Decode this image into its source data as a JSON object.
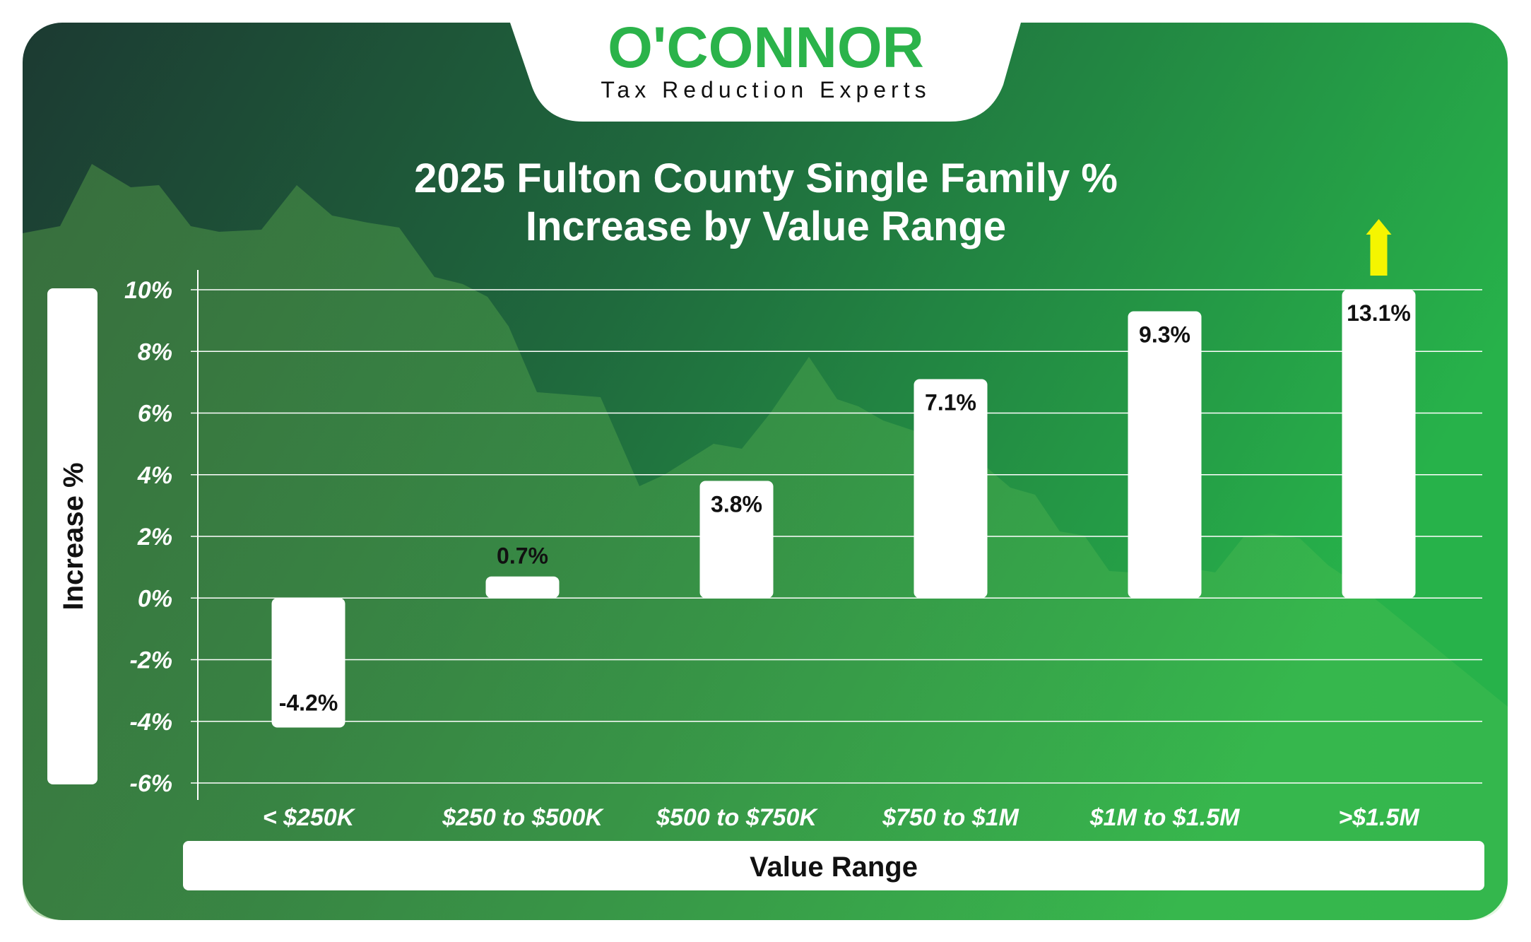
{
  "logo": {
    "brand": "O'CONNOR",
    "tagline": "Tax Reduction Experts"
  },
  "colors": {
    "background_start": "#1c3a32",
    "background_end": "#27b24a",
    "bar": "#ffffff",
    "arrow": "#f5f500",
    "brand_green": "#2bb34a"
  },
  "chart_data": {
    "type": "bar",
    "title": [
      "2025 Fulton County Single Family %",
      "Increase by Value Range"
    ],
    "xlabel": "Value Range",
    "ylabel": "Increase %",
    "categories": [
      "< $250K",
      "$250 to $500K",
      "$500 to $750K",
      "$750 to $1M",
      "$1M to $1.5M",
      ">$1.5M"
    ],
    "values": [
      -4.2,
      0.7,
      3.8,
      7.1,
      9.3,
      13.1
    ],
    "value_labels": [
      "-4.2%",
      "0.7%",
      "3.8%",
      "7.1%",
      "9.3%",
      "13.1%"
    ],
    "ylim": [
      -6,
      10
    ],
    "yticks": [
      10,
      8,
      6,
      4,
      2,
      0,
      -2,
      -4,
      -6
    ],
    "ytick_labels": [
      "10%",
      "8%",
      "6%",
      "4%",
      "2%",
      "0%",
      "-2%",
      "-4%",
      "-6%"
    ],
    "grid": true,
    "overflow_indicator": {
      "category": ">$1.5M",
      "icon": "up-arrow-icon"
    }
  }
}
